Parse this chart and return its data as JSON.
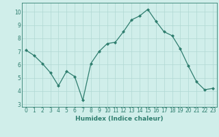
{
  "x": [
    0,
    1,
    2,
    3,
    4,
    5,
    6,
    7,
    8,
    9,
    10,
    11,
    12,
    13,
    14,
    15,
    16,
    17,
    18,
    19,
    20,
    21,
    22,
    23
  ],
  "y": [
    7.1,
    6.7,
    6.1,
    5.4,
    4.4,
    5.5,
    5.1,
    3.3,
    6.1,
    7.0,
    7.6,
    7.7,
    8.5,
    9.4,
    9.7,
    10.2,
    9.3,
    8.5,
    8.2,
    7.2,
    5.9,
    4.7,
    4.1,
    4.2
  ],
  "line_color": "#2e7d6e",
  "marker": "D",
  "markersize": 2.0,
  "linewidth": 0.9,
  "bg_color": "#d0eeea",
  "grid_color": "#b0d8d2",
  "xlabel": "Humidex (Indice chaleur)",
  "xlabel_fontsize": 6.5,
  "tick_fontsize": 5.5,
  "ylim": [
    2.8,
    10.7
  ],
  "xlim": [
    -0.5,
    23.5
  ],
  "yticks": [
    3,
    4,
    5,
    6,
    7,
    8,
    9,
    10
  ],
  "xticks": [
    0,
    1,
    2,
    3,
    4,
    5,
    6,
    7,
    8,
    9,
    10,
    11,
    12,
    13,
    14,
    15,
    16,
    17,
    18,
    19,
    20,
    21,
    22,
    23
  ]
}
